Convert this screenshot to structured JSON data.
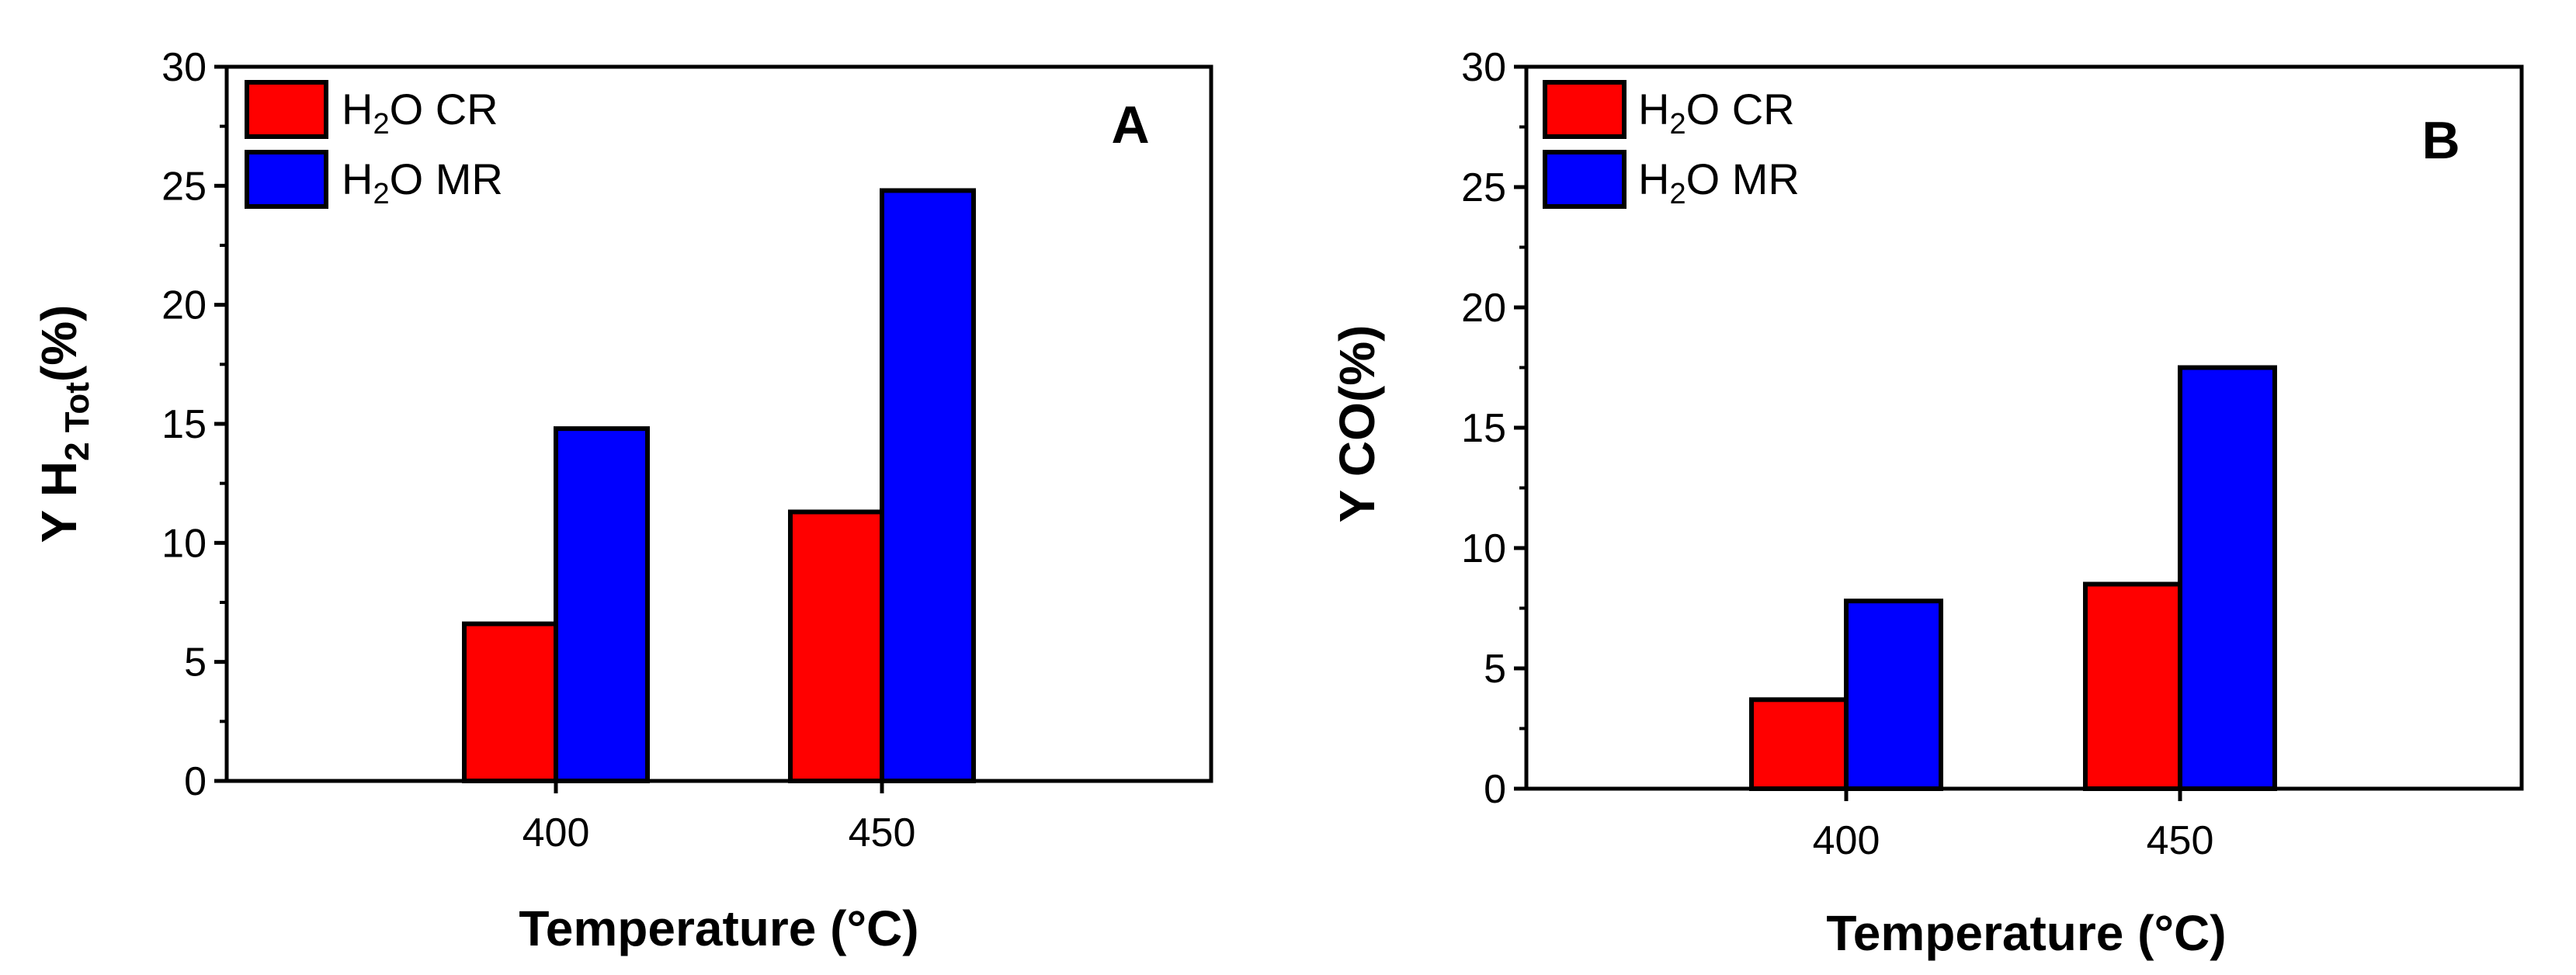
{
  "colors": {
    "cr": "#ff0000",
    "mr": "#0000ff"
  },
  "chart_data": [
    {
      "type": "bar",
      "panel_label": "A",
      "categories": [
        "400",
        "450"
      ],
      "series": [
        {
          "name": "H2O CR",
          "values": [
            6.6,
            11.3
          ]
        },
        {
          "name": "H2O MR",
          "values": [
            14.8,
            24.8
          ]
        }
      ],
      "xlabel": "Temperature (°C)",
      "ylabel": "Y H2 Tot(%)",
      "ylim": [
        0,
        30
      ],
      "yticks": [
        "0",
        "5",
        "10",
        "15",
        "20",
        "25",
        "30"
      ],
      "legend_position": "top-left",
      "grid": false
    },
    {
      "type": "bar",
      "panel_label": "B",
      "categories": [
        "400",
        "450"
      ],
      "series": [
        {
          "name": "H2O CR",
          "values": [
            3.7,
            8.5
          ]
        },
        {
          "name": "H2O MR",
          "values": [
            7.8,
            17.5
          ]
        }
      ],
      "xlabel": "Temperature (°C)",
      "ylabel": "Y CO(%)",
      "ylim": [
        0,
        30
      ],
      "yticks": [
        "0",
        "5",
        "10",
        "15",
        "20",
        "25",
        "30"
      ],
      "legend_position": "top-left",
      "grid": false
    }
  ],
  "legend_text": {
    "cr": {
      "prefix": "H",
      "sub": "2",
      "suffix": "O CR"
    },
    "mr": {
      "prefix": "H",
      "sub": "2",
      "suffix": "O MR"
    }
  },
  "ylabel_parts": {
    "a": {
      "main": "Y H",
      "sub": "2 Tot",
      "tail": "(%)"
    },
    "b": {
      "main": "Y CO(%)"
    }
  }
}
